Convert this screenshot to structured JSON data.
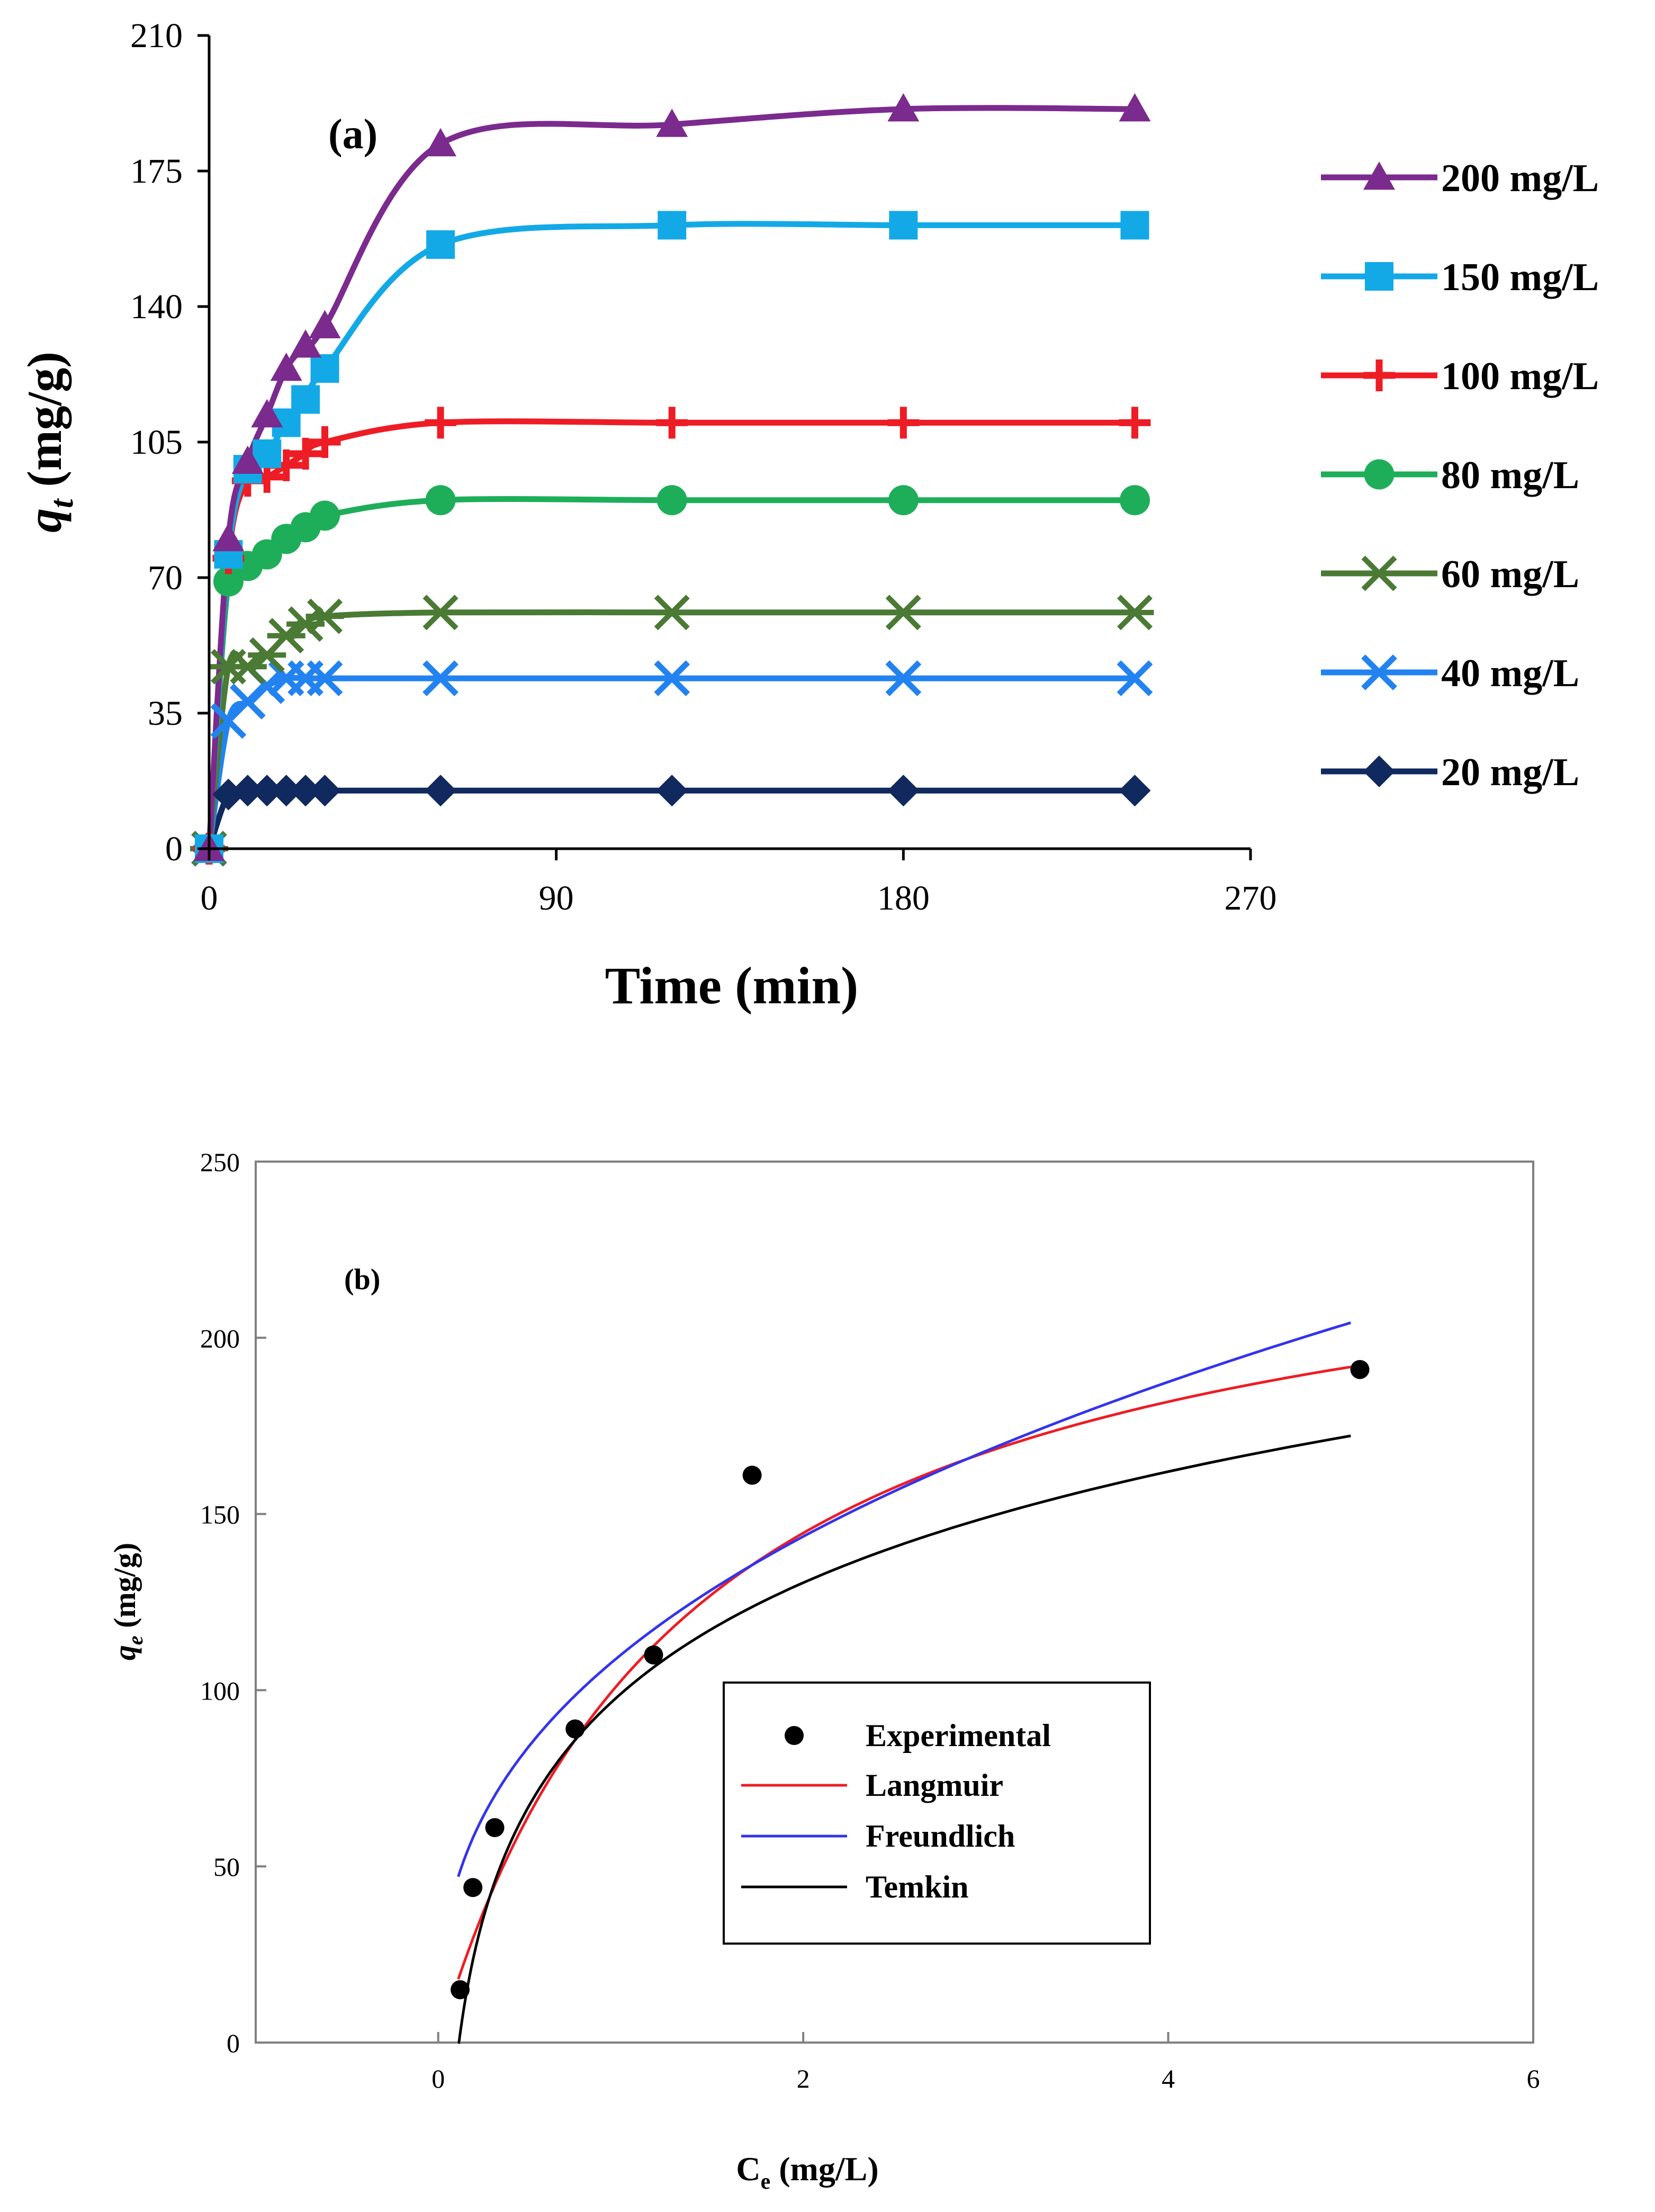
{
  "chart_data": [
    {
      "type": "line",
      "panel_label": "(a)",
      "xlabel": "Time (min)",
      "ylabel": "q",
      "ylabel_sub": "t",
      "ylabel_unit": " (mg/g)",
      "xlim": [
        0,
        270
      ],
      "ylim": [
        0,
        210
      ],
      "xticks": [
        0,
        90,
        180,
        270
      ],
      "yticks": [
        0,
        35,
        70,
        105,
        140,
        175,
        210
      ],
      "grid": false,
      "legend_position": "right",
      "x": [
        0,
        5,
        10,
        15,
        20,
        25,
        30,
        60,
        120,
        180,
        240
      ],
      "series": [
        {
          "name": "200 mg/L",
          "marker": "triangle",
          "color": "#7B2A8E",
          "values": [
            0,
            80,
            100,
            112,
            124,
            130,
            135,
            182,
            187,
            191,
            191
          ]
        },
        {
          "name": "150 mg/L",
          "marker": "square",
          "color": "#13A9E6",
          "values": [
            0,
            76,
            98,
            102,
            110,
            116,
            124,
            156,
            161,
            161,
            161
          ]
        },
        {
          "name": "100 mg/L",
          "marker": "plus",
          "color": "#EE1C24",
          "values": [
            0,
            75,
            95,
            96,
            99,
            102,
            105,
            110,
            110,
            110,
            110
          ]
        },
        {
          "name": "80 mg/L",
          "marker": "circle",
          "color": "#1EAE5A",
          "values": [
            0,
            69,
            73,
            76,
            80,
            83,
            86,
            90,
            90,
            90,
            90
          ]
        },
        {
          "name": "60 mg/L",
          "marker": "asterisk",
          "color": "#4A7A34",
          "values": [
            0,
            47,
            47,
            50,
            55,
            58,
            60,
            61,
            61,
            61,
            61
          ]
        },
        {
          "name": "40 mg/L",
          "marker": "x",
          "color": "#2283F0",
          "values": [
            0,
            33,
            38,
            42,
            44,
            44,
            44,
            44,
            44,
            44,
            44
          ]
        },
        {
          "name": "20 mg/L",
          "marker": "diamond",
          "color": "#10295E",
          "values": [
            0,
            14,
            15,
            15,
            15,
            15,
            15,
            15,
            15,
            15,
            15
          ]
        }
      ]
    },
    {
      "type": "scatter",
      "panel_label": "(b)",
      "xlabel": "C",
      "xlabel_sub": "e",
      "xlabel_unit": " (mg/L)",
      "ylabel": "q",
      "ylabel_sub": "e",
      "ylabel_unit": " (mg/g)",
      "xlim": [
        -1,
        6
      ],
      "ylim": [
        0,
        250
      ],
      "xticks": [
        0,
        2,
        4,
        6
      ],
      "yticks": [
        0,
        50,
        100,
        150,
        200,
        250
      ],
      "grid": false,
      "legend_position": "center-right",
      "experimental": {
        "name": "Experimental",
        "color": "#000000",
        "x": [
          0.12,
          0.19,
          0.31,
          0.75,
          1.18,
          1.72,
          5.05
        ],
        "y": [
          15,
          44,
          61,
          89,
          110,
          161,
          191
        ]
      },
      "fits": [
        {
          "name": "Langmuir",
          "color": "#EE1C24",
          "model": "langmuir",
          "qm": 245,
          "KL": 0.72
        },
        {
          "name": "Freundlich",
          "color": "#3333EE",
          "model": "freundlich",
          "KF": 110,
          "n": 2.6
        },
        {
          "name": "Temkin",
          "color": "#000000",
          "model": "temkin",
          "B": 45.5,
          "KT": 8.8
        }
      ],
      "fit_range": [
        0.11,
        5.0
      ]
    }
  ]
}
